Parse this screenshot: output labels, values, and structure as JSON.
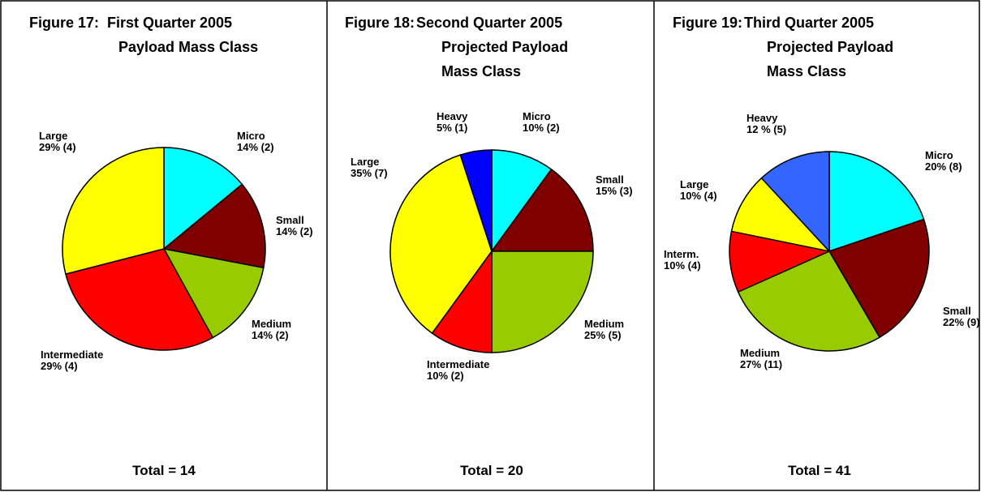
{
  "chart_data": [
    {
      "type": "pie",
      "figure": "Figure 17:",
      "title_lines": [
        "First Quarter 2005",
        "Payload Mass Class"
      ],
      "categories": [
        "Micro",
        "Small",
        "Medium",
        "Intermediate",
        "Large"
      ],
      "values": [
        14,
        14,
        14,
        29,
        29
      ],
      "value_labels": [
        "14% (2)",
        "14% (2)",
        "14% (2)",
        "29% (4)",
        "29% (4)"
      ],
      "colors": [
        "#00ffff",
        "#800000",
        "#99cc00",
        "#ff0000",
        "#ffff00"
      ],
      "total": "Total = 14"
    },
    {
      "type": "pie",
      "figure": "Figure 18:",
      "title_lines": [
        "Second Quarter 2005",
        "Projected Payload",
        "Mass Class"
      ],
      "categories": [
        "Micro",
        "Small",
        "Medium",
        "Intermediate",
        "Large",
        "Heavy"
      ],
      "values": [
        10,
        15,
        25,
        10,
        35,
        5
      ],
      "value_labels": [
        "10% (2)",
        "15% (3)",
        "25% (5)",
        "10% (2)",
        "35% (7)",
        "5% (1)"
      ],
      "colors": [
        "#00ffff",
        "#800000",
        "#99cc00",
        "#ff0000",
        "#ffff00",
        "#0000ff"
      ],
      "total": "Total = 20"
    },
    {
      "type": "pie",
      "figure": "Figure 19:",
      "title_lines": [
        "Third Quarter 2005",
        "Projected Payload",
        "Mass Class"
      ],
      "categories": [
        "Micro",
        "Small",
        "Medium",
        "Interm.",
        "Large",
        "Heavy"
      ],
      "values": [
        20,
        22,
        27,
        10,
        10,
        12
      ],
      "value_labels": [
        "20% (8)",
        "22% (9)",
        "27% (11)",
        "10% (4)",
        "10% (4)",
        "12 % (5)"
      ],
      "colors": [
        "#00ffff",
        "#800000",
        "#99cc00",
        "#ff0000",
        "#ffff00",
        "#3366ff"
      ],
      "total": "Total = 41"
    }
  ]
}
